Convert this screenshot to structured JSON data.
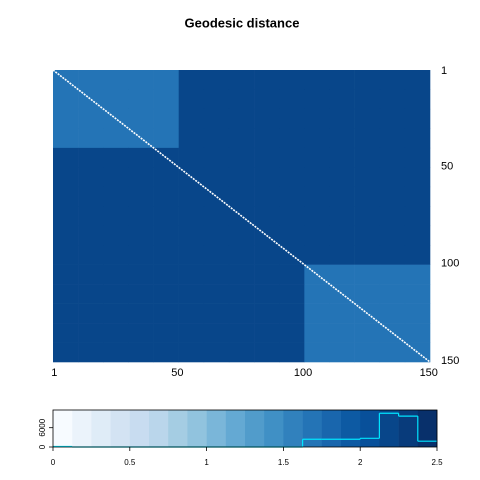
{
  "chart_data": {
    "type": "heatmap",
    "title": "Geodesic distance",
    "xlim": [
      0.5,
      150.5
    ],
    "ylim": [
      0.5,
      150.5
    ],
    "xticks": [
      1,
      50,
      100,
      150
    ],
    "yticks": [
      1,
      50,
      100,
      150
    ],
    "matrix": [
      [
        1.7,
        1.7,
        1.7,
        1.7,
        1.7,
        2.2,
        2.2,
        2.2,
        2.2,
        2.2,
        2.2,
        2.2,
        2.2,
        2.2,
        2.2
      ],
      [
        1.7,
        1.7,
        1.7,
        1.7,
        1.7,
        2.2,
        2.2,
        2.2,
        2.2,
        2.2,
        2.2,
        2.2,
        2.2,
        2.2,
        2.2
      ],
      [
        1.7,
        1.7,
        1.7,
        1.7,
        1.7,
        2.2,
        2.2,
        2.2,
        2.2,
        2.2,
        2.2,
        2.2,
        2.2,
        2.2,
        2.2
      ],
      [
        1.7,
        1.7,
        1.7,
        1.7,
        1.7,
        2.2,
        2.2,
        2.2,
        2.2,
        2.2,
        2.2,
        2.2,
        2.2,
        2.2,
        2.2
      ],
      [
        2.2,
        2.2,
        2.2,
        2.2,
        2.2,
        2.2,
        2.2,
        2.2,
        2.2,
        2.2,
        2.2,
        2.2,
        2.2,
        2.2,
        2.2
      ],
      [
        2.2,
        2.2,
        2.2,
        2.2,
        2.2,
        2.2,
        2.2,
        2.2,
        2.2,
        2.2,
        2.2,
        2.2,
        2.2,
        2.2,
        2.2
      ],
      [
        2.2,
        2.2,
        2.2,
        2.2,
        2.2,
        2.2,
        2.2,
        2.2,
        2.2,
        2.2,
        2.2,
        2.2,
        2.2,
        2.2,
        2.2
      ],
      [
        2.2,
        2.2,
        2.2,
        2.2,
        2.2,
        2.2,
        2.2,
        2.2,
        2.2,
        2.2,
        2.2,
        2.2,
        2.2,
        2.2,
        2.2
      ],
      [
        2.2,
        2.2,
        2.2,
        2.2,
        2.2,
        2.2,
        2.2,
        2.2,
        2.2,
        2.2,
        2.2,
        2.2,
        2.2,
        2.2,
        2.2
      ],
      [
        2.2,
        2.2,
        2.2,
        2.2,
        2.2,
        2.2,
        2.2,
        2.2,
        2.2,
        2.2,
        2.2,
        2.2,
        2.2,
        2.2,
        2.2
      ],
      [
        2.25,
        2.25,
        2.25,
        2.25,
        2.25,
        2.25,
        2.25,
        2.25,
        2.25,
        2.25,
        1.7,
        1.7,
        1.7,
        1.7,
        1.7
      ],
      [
        2.25,
        2.25,
        2.25,
        2.25,
        2.25,
        2.25,
        2.25,
        2.25,
        2.25,
        2.25,
        1.7,
        1.7,
        1.7,
        1.7,
        1.7
      ],
      [
        2.25,
        2.25,
        2.25,
        2.25,
        2.25,
        2.25,
        2.25,
        2.25,
        2.25,
        2.25,
        1.7,
        1.7,
        1.7,
        1.7,
        1.7
      ],
      [
        2.25,
        2.25,
        2.25,
        2.25,
        2.25,
        2.25,
        2.25,
        2.25,
        2.25,
        2.25,
        1.7,
        1.7,
        1.7,
        1.7,
        1.7
      ],
      [
        2.25,
        2.25,
        2.25,
        2.25,
        2.25,
        2.25,
        2.25,
        2.25,
        2.25,
        2.25,
        1.7,
        1.7,
        1.7,
        1.7,
        1.7
      ]
    ],
    "key": {
      "bins": [
        0,
        0.125,
        0.25,
        0.375,
        0.5,
        0.625,
        0.75,
        0.875,
        1,
        1.125,
        1.25,
        1.375,
        1.5,
        1.625,
        1.75,
        1.875,
        2,
        2.125,
        2.25,
        2.375,
        2.5
      ],
      "colors": [
        "#F7FBFF",
        "#EBF3FB",
        "#DFECF7",
        "#D3E3F3",
        "#C8DCF0",
        "#BAD6EB",
        "#A5CDE3",
        "#91C3DE",
        "#7AB6D9",
        "#64A9D3",
        "#519CCB",
        "#4090C5",
        "#3181BD",
        "#2474B6",
        "#1966AD",
        "#0D5AA3",
        "#08509A",
        "#08468A",
        "#083B7B",
        "#08306B"
      ],
      "counts": [
        150,
        0,
        0,
        0,
        0,
        0,
        0,
        0,
        0,
        0,
        0,
        0,
        0,
        2400,
        2400,
        2400,
        2700,
        10500,
        9600,
        1800
      ],
      "hist_color": "#00E5FF",
      "xlim": [
        0,
        2.5
      ],
      "xticks": [
        0,
        0.5,
        1,
        1.5,
        2,
        2.5
      ],
      "ylim": [
        0,
        11500
      ],
      "yticks": [
        0,
        6000
      ]
    }
  }
}
